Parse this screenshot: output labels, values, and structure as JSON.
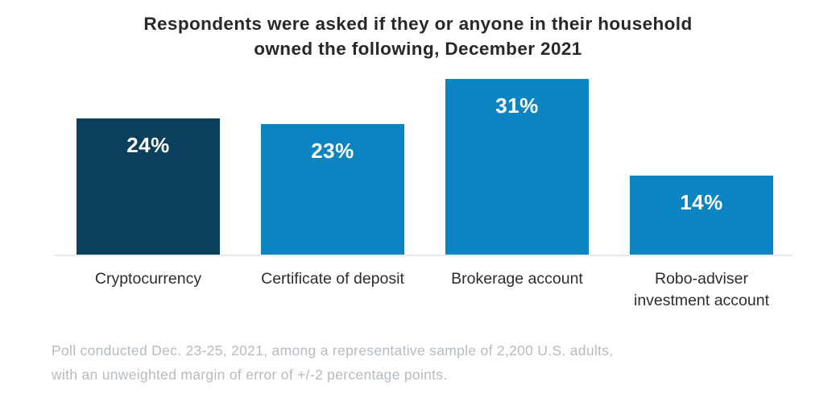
{
  "header": {
    "title_lines": [
      "Respondents were asked if they or anyone in their household",
      "owned the following, December 2021"
    ]
  },
  "chart_data": {
    "type": "bar",
    "title": "Respondents were asked if they or anyone in their household owned the following, December 2021",
    "categories": [
      "Cryptocurrency",
      "Certificate of deposit",
      "Brokerage account",
      "Robo-adviser\ninvestment account"
    ],
    "values": [
      24,
      23,
      31,
      14
    ],
    "value_labels": [
      "24%",
      "23%",
      "31%",
      "14%"
    ],
    "unit": "percent",
    "ylim": [
      0,
      31
    ],
    "grid": false,
    "legend": "none",
    "bar_colors": [
      "#0a405c",
      "#0b84c2",
      "#0b84c2",
      "#0b84c2"
    ],
    "value_label_color": "#ffffff",
    "baseline_color": "#e8eaec"
  },
  "footnote": {
    "lines": [
      "Poll conducted Dec. 23-25, 2021, among a representative sample of 2,200 U.S. adults,",
      "with an unweighted margin of error of +/-2 percentage points."
    ]
  }
}
